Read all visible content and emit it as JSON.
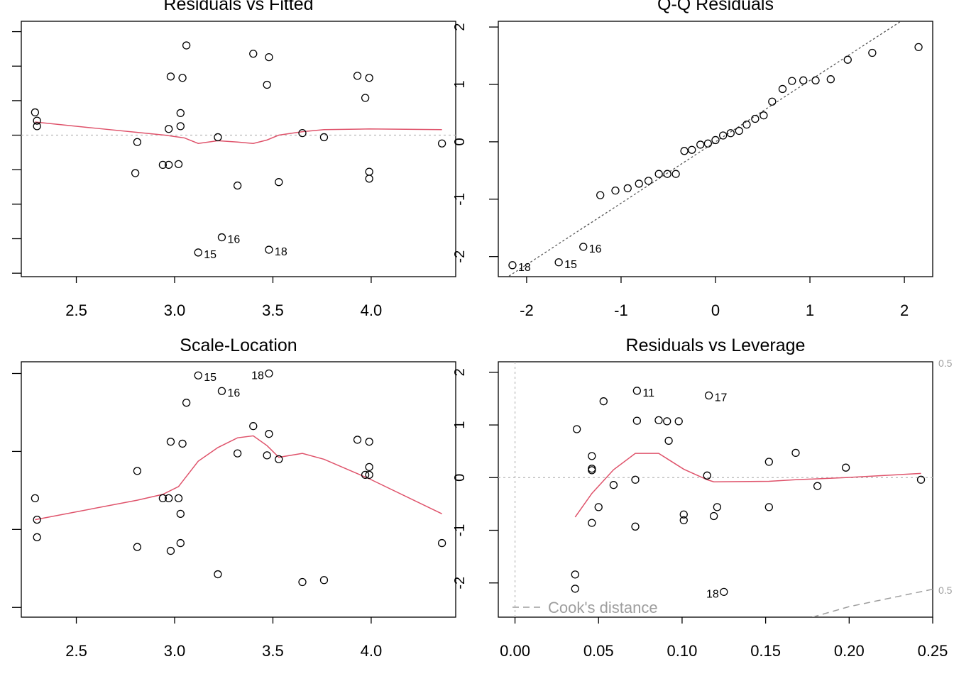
{
  "colors": {
    "axis": "#000000",
    "points": "#000000",
    "smoother": "#DF536B",
    "reference": "#BEBEBE",
    "qqline": "#555555",
    "cooks": "#9E9E9E"
  },
  "chart_data": [
    {
      "type": "scatter",
      "title": "Residuals vs Fitted",
      "xlabel": "",
      "ylabel": "",
      "xlim": [
        2.22,
        4.43
      ],
      "ylim": [
        -2.05,
        1.65
      ],
      "x_ticks": [
        2.5,
        3.0,
        3.5,
        4.0
      ],
      "x_tick_labels": [
        "2.5",
        "3.0",
        "3.5",
        "4.0"
      ],
      "y_ticks": [
        -2,
        -1.5,
        -1,
        -0.5,
        0,
        0.5,
        1,
        1.5
      ],
      "y_tick_labels": [],
      "ref_hline": 0,
      "points": [
        {
          "x": 2.29,
          "y": 0.33
        },
        {
          "x": 2.3,
          "y": 0.21
        },
        {
          "x": 2.3,
          "y": 0.13
        },
        {
          "x": 2.81,
          "y": -0.1
        },
        {
          "x": 2.8,
          "y": -0.55
        },
        {
          "x": 2.94,
          "y": -0.43
        },
        {
          "x": 2.97,
          "y": -0.43
        },
        {
          "x": 3.02,
          "y": -0.42
        },
        {
          "x": 2.97,
          "y": 0.09
        },
        {
          "x": 3.03,
          "y": 0.13
        },
        {
          "x": 3.03,
          "y": 0.32
        },
        {
          "x": 2.98,
          "y": 0.85
        },
        {
          "x": 3.04,
          "y": 0.83
        },
        {
          "x": 3.06,
          "y": 1.3
        },
        {
          "x": 3.22,
          "y": -0.03
        },
        {
          "x": 3.32,
          "y": -0.73
        },
        {
          "x": 3.4,
          "y": 1.18
        },
        {
          "x": 3.48,
          "y": 1.13
        },
        {
          "x": 3.47,
          "y": 0.73
        },
        {
          "x": 3.53,
          "y": -0.68
        },
        {
          "x": 3.65,
          "y": 0.03
        },
        {
          "x": 3.76,
          "y": -0.03
        },
        {
          "x": 3.93,
          "y": 0.86
        },
        {
          "x": 3.99,
          "y": 0.83
        },
        {
          "x": 3.97,
          "y": 0.54
        },
        {
          "x": 3.99,
          "y": -0.53
        },
        {
          "x": 3.99,
          "y": -0.63
        },
        {
          "x": 4.36,
          "y": -0.12
        },
        {
          "x": 3.24,
          "y": -1.48,
          "label": "16"
        },
        {
          "x": 3.12,
          "y": -1.7,
          "label": "15"
        },
        {
          "x": 3.48,
          "y": -1.66,
          "label": "18"
        }
      ],
      "smoother": [
        {
          "x": 2.29,
          "y": 0.19
        },
        {
          "x": 2.6,
          "y": 0.1
        },
        {
          "x": 2.81,
          "y": 0.04
        },
        {
          "x": 2.95,
          "y": 0.0
        },
        {
          "x": 3.05,
          "y": -0.04
        },
        {
          "x": 3.12,
          "y": -0.12
        },
        {
          "x": 3.22,
          "y": -0.08
        },
        {
          "x": 3.32,
          "y": -0.1
        },
        {
          "x": 3.4,
          "y": -0.12
        },
        {
          "x": 3.47,
          "y": -0.07
        },
        {
          "x": 3.53,
          "y": 0.0
        },
        {
          "x": 3.65,
          "y": 0.05
        },
        {
          "x": 3.76,
          "y": 0.08
        },
        {
          "x": 3.99,
          "y": 0.09
        },
        {
          "x": 4.36,
          "y": 0.08
        }
      ]
    },
    {
      "type": "scatter",
      "title": "Q-Q Residuals",
      "xlabel": "",
      "ylabel": "",
      "xlim": [
        -2.3,
        2.3
      ],
      "ylim": [
        -2.35,
        2.1
      ],
      "x_ticks": [
        -2,
        -1,
        0,
        1,
        2
      ],
      "x_tick_labels": [
        "-2",
        "-1",
        "0",
        "1",
        "2"
      ],
      "y_ticks": [
        -2,
        -1,
        0,
        1,
        2
      ],
      "y_tick_labels": [
        "-2",
        "-1",
        "0",
        "1",
        "2"
      ],
      "ref_line": {
        "intercept": 0.0,
        "slope": 1.07
      },
      "points": [
        {
          "x": -2.15,
          "y": -2.15,
          "label": "18"
        },
        {
          "x": -1.66,
          "y": -2.1,
          "label": "15"
        },
        {
          "x": -1.4,
          "y": -1.83,
          "label": "16"
        },
        {
          "x": -1.22,
          "y": -0.93
        },
        {
          "x": -1.06,
          "y": -0.85
        },
        {
          "x": -0.93,
          "y": -0.81
        },
        {
          "x": -0.81,
          "y": -0.73
        },
        {
          "x": -0.71,
          "y": -0.68
        },
        {
          "x": -0.6,
          "y": -0.56
        },
        {
          "x": -0.51,
          "y": -0.56
        },
        {
          "x": -0.42,
          "y": -0.56
        },
        {
          "x": -0.33,
          "y": -0.16
        },
        {
          "x": -0.25,
          "y": -0.14
        },
        {
          "x": -0.16,
          "y": -0.05
        },
        {
          "x": -0.08,
          "y": -0.03
        },
        {
          "x": 0.0,
          "y": 0.03
        },
        {
          "x": 0.08,
          "y": 0.11
        },
        {
          "x": 0.16,
          "y": 0.15
        },
        {
          "x": 0.25,
          "y": 0.19
        },
        {
          "x": 0.33,
          "y": 0.3
        },
        {
          "x": 0.42,
          "y": 0.4
        },
        {
          "x": 0.51,
          "y": 0.46
        },
        {
          "x": 0.6,
          "y": 0.7
        },
        {
          "x": 0.71,
          "y": 0.92
        },
        {
          "x": 0.81,
          "y": 1.06
        },
        {
          "x": 0.93,
          "y": 1.07
        },
        {
          "x": 1.06,
          "y": 1.07
        },
        {
          "x": 1.22,
          "y": 1.09
        },
        {
          "x": 1.4,
          "y": 1.43
        },
        {
          "x": 1.66,
          "y": 1.55
        },
        {
          "x": 2.15,
          "y": 1.65
        }
      ]
    },
    {
      "type": "scatter",
      "title": "Scale-Location",
      "xlabel": "",
      "ylabel": "",
      "xlim": [
        2.22,
        4.43
      ],
      "ylim": [
        0.05,
        1.36
      ],
      "x_ticks": [
        2.5,
        3.0,
        3.5,
        4.0
      ],
      "x_tick_labels": [
        "2.5",
        "3.0",
        "3.5",
        "4.0"
      ],
      "y_ticks": [
        0.1,
        0.5,
        0.9,
        1.3
      ],
      "y_tick_labels": [],
      "points": [
        {
          "x": 2.29,
          "y": 0.66
        },
        {
          "x": 2.3,
          "y": 0.55
        },
        {
          "x": 2.3,
          "y": 0.46
        },
        {
          "x": 2.81,
          "y": 0.8
        },
        {
          "x": 2.81,
          "y": 0.41
        },
        {
          "x": 2.94,
          "y": 0.66
        },
        {
          "x": 2.97,
          "y": 0.66
        },
        {
          "x": 3.02,
          "y": 0.66
        },
        {
          "x": 3.03,
          "y": 0.58
        },
        {
          "x": 3.03,
          "y": 0.43
        },
        {
          "x": 2.98,
          "y": 0.39
        },
        {
          "x": 2.98,
          "y": 0.95
        },
        {
          "x": 3.04,
          "y": 0.94
        },
        {
          "x": 3.06,
          "y": 1.15
        },
        {
          "x": 3.22,
          "y": 0.27
        },
        {
          "x": 3.32,
          "y": 0.89
        },
        {
          "x": 3.4,
          "y": 1.03
        },
        {
          "x": 3.48,
          "y": 0.99
        },
        {
          "x": 3.47,
          "y": 0.88
        },
        {
          "x": 3.53,
          "y": 0.86
        },
        {
          "x": 3.65,
          "y": 0.23
        },
        {
          "x": 3.76,
          "y": 0.24
        },
        {
          "x": 3.93,
          "y": 0.96
        },
        {
          "x": 3.99,
          "y": 0.95
        },
        {
          "x": 3.97,
          "y": 0.78
        },
        {
          "x": 3.99,
          "y": 0.82
        },
        {
          "x": 3.99,
          "y": 0.78
        },
        {
          "x": 4.36,
          "y": 0.43
        },
        {
          "x": 3.12,
          "y": 1.29,
          "label": "15"
        },
        {
          "x": 3.24,
          "y": 1.21,
          "label": "16"
        },
        {
          "x": 3.48,
          "y": 1.3,
          "label": "18"
        }
      ],
      "smoother": [
        {
          "x": 2.29,
          "y": 0.55
        },
        {
          "x": 2.81,
          "y": 0.65
        },
        {
          "x": 2.94,
          "y": 0.68
        },
        {
          "x": 3.02,
          "y": 0.72
        },
        {
          "x": 3.12,
          "y": 0.85
        },
        {
          "x": 3.22,
          "y": 0.92
        },
        {
          "x": 3.32,
          "y": 0.97
        },
        {
          "x": 3.4,
          "y": 0.98
        },
        {
          "x": 3.47,
          "y": 0.93
        },
        {
          "x": 3.53,
          "y": 0.87
        },
        {
          "x": 3.65,
          "y": 0.89
        },
        {
          "x": 3.76,
          "y": 0.86
        },
        {
          "x": 3.99,
          "y": 0.76
        },
        {
          "x": 4.36,
          "y": 0.58
        }
      ]
    },
    {
      "type": "scatter",
      "title": "Residuals vs Leverage",
      "xlabel": "",
      "ylabel": "",
      "xlim": [
        -0.01,
        0.25
      ],
      "ylim": [
        -2.65,
        2.2
      ],
      "x_ticks": [
        0.0,
        0.05,
        0.1,
        0.15,
        0.2,
        0.25
      ],
      "x_tick_labels": [
        "0.00",
        "0.05",
        "0.10",
        "0.15",
        "0.20",
        "0.25"
      ],
      "y_ticks": [
        -2,
        -1,
        0,
        1,
        2
      ],
      "y_tick_labels": [
        "-2",
        "-1",
        "0",
        "1",
        "2"
      ],
      "ref_hline": 0,
      "ref_vline": 0,
      "cooks_contour_labels": [
        "0.5",
        "0.5"
      ],
      "legend": {
        "label": "Cook's distance",
        "position": "bottom-left"
      },
      "points": [
        {
          "x": 0.037,
          "y": 0.92
        },
        {
          "x": 0.053,
          "y": 1.45
        },
        {
          "x": 0.046,
          "y": 0.41
        },
        {
          "x": 0.046,
          "y": 0.17
        },
        {
          "x": 0.046,
          "y": 0.14
        },
        {
          "x": 0.059,
          "y": -0.14
        },
        {
          "x": 0.072,
          "y": -0.04
        },
        {
          "x": 0.05,
          "y": -0.56
        },
        {
          "x": 0.046,
          "y": -0.86
        },
        {
          "x": 0.072,
          "y": -0.93
        },
        {
          "x": 0.036,
          "y": -1.84
        },
        {
          "x": 0.036,
          "y": -2.11
        },
        {
          "x": 0.073,
          "y": 1.65,
          "label": "11"
        },
        {
          "x": 0.073,
          "y": 1.08
        },
        {
          "x": 0.086,
          "y": 1.09
        },
        {
          "x": 0.091,
          "y": 1.07
        },
        {
          "x": 0.098,
          "y": 1.07
        },
        {
          "x": 0.092,
          "y": 0.7
        },
        {
          "x": 0.101,
          "y": -0.7
        },
        {
          "x": 0.101,
          "y": -0.81
        },
        {
          "x": 0.116,
          "y": 1.56,
          "label": "17"
        },
        {
          "x": 0.115,
          "y": 0.04
        },
        {
          "x": 0.121,
          "y": -0.56
        },
        {
          "x": 0.119,
          "y": -0.73
        },
        {
          "x": 0.125,
          "y": -2.17,
          "label": "18"
        },
        {
          "x": 0.152,
          "y": 0.3
        },
        {
          "x": 0.152,
          "y": -0.56
        },
        {
          "x": 0.168,
          "y": 0.47
        },
        {
          "x": 0.181,
          "y": -0.16
        },
        {
          "x": 0.198,
          "y": 0.19
        },
        {
          "x": 0.243,
          "y": -0.04
        }
      ],
      "smoother": [
        {
          "x": 0.036,
          "y": -0.75
        },
        {
          "x": 0.046,
          "y": -0.3
        },
        {
          "x": 0.059,
          "y": 0.15
        },
        {
          "x": 0.072,
          "y": 0.46
        },
        {
          "x": 0.086,
          "y": 0.46
        },
        {
          "x": 0.092,
          "y": 0.34
        },
        {
          "x": 0.101,
          "y": 0.16
        },
        {
          "x": 0.115,
          "y": -0.04
        },
        {
          "x": 0.119,
          "y": -0.08
        },
        {
          "x": 0.152,
          "y": -0.07
        },
        {
          "x": 0.168,
          "y": -0.04
        },
        {
          "x": 0.198,
          "y": 0.0
        },
        {
          "x": 0.243,
          "y": 0.08
        }
      ],
      "cooks_line": [
        {
          "x": 0.178,
          "y": -2.65
        },
        {
          "x": 0.2,
          "y": -2.45
        },
        {
          "x": 0.25,
          "y": -2.12
        }
      ]
    }
  ]
}
